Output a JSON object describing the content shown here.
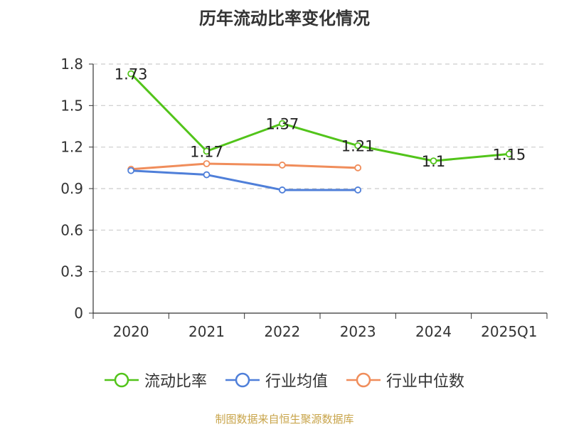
{
  "chart_data": {
    "type": "line",
    "title": "历年流动比率变化情况",
    "categories": [
      "2020",
      "2021",
      "2022",
      "2023",
      "2024",
      "2025Q1"
    ],
    "series": [
      {
        "name": "流动比率",
        "color": "#52c41a",
        "values": [
          1.73,
          1.17,
          1.37,
          1.21,
          1.1,
          1.15
        ],
        "labels": [
          "1.73",
          "1.17",
          "1.37",
          "1.21",
          "1.1",
          "1.15"
        ]
      },
      {
        "name": "行业均值",
        "color": "#4f7fd9",
        "values": [
          1.03,
          1.0,
          0.89,
          0.89,
          null,
          null
        ]
      },
      {
        "name": "行业中位数",
        "color": "#f08d5b",
        "values": [
          1.04,
          1.08,
          1.07,
          1.05,
          null,
          null
        ]
      }
    ],
    "yticks": [
      "0",
      "0.3",
      "0.6",
      "0.9",
      "1.2",
      "1.5",
      "1.8"
    ],
    "ylim": [
      0,
      1.8
    ],
    "grid": true,
    "legend_position": "bottom"
  },
  "source_text": "制图数据来自恒生聚源数据库"
}
